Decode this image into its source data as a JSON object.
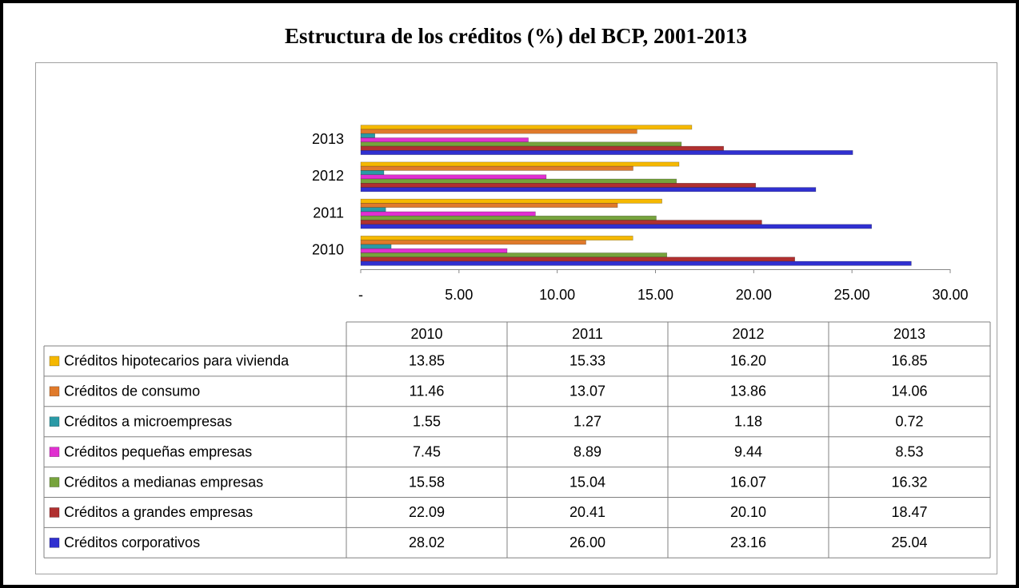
{
  "chart_data": {
    "type": "bar",
    "orientation": "horizontal",
    "title": "Estructura de los créditos (%) del BCP, 2001-2013",
    "categories": [
      "2010",
      "2011",
      "2012",
      "2013"
    ],
    "xlim": [
      0,
      30
    ],
    "xticks": [
      {
        "value": 0,
        "label": "-"
      },
      {
        "value": 5,
        "label": "5.00"
      },
      {
        "value": 10,
        "label": "10.00"
      },
      {
        "value": 15,
        "label": "15.00"
      },
      {
        "value": 20,
        "label": "20.00"
      },
      {
        "value": 25,
        "label": "25.00"
      },
      {
        "value": 30,
        "label": "30.00"
      }
    ],
    "series": [
      {
        "name": "Créditos hipotecarios para vivienda",
        "color": "#f5b800",
        "values": [
          13.85,
          15.33,
          16.2,
          16.85
        ],
        "value_labels": [
          "13.85",
          "15.33",
          "16.20",
          "16.85"
        ]
      },
      {
        "name": "Créditos de consumo",
        "color": "#e07a2b",
        "values": [
          11.46,
          13.07,
          13.86,
          14.06
        ],
        "value_labels": [
          "11.46",
          "13.07",
          "13.86",
          "14.06"
        ]
      },
      {
        "name": "Créditos a microempresas",
        "color": "#2a9aa6",
        "values": [
          1.55,
          1.27,
          1.18,
          0.72
        ],
        "value_labels": [
          "1.55",
          "1.27",
          "1.18",
          "0.72"
        ]
      },
      {
        "name": "Créditos pequeñas empresas",
        "color": "#e030d0",
        "values": [
          7.45,
          8.89,
          9.44,
          8.53
        ],
        "value_labels": [
          "7.45",
          "8.89",
          "9.44",
          "8.53"
        ]
      },
      {
        "name": "Créditos a medianas empresas",
        "color": "#76a33c",
        "values": [
          15.58,
          15.04,
          16.07,
          16.32
        ],
        "value_labels": [
          "15.58",
          "15.04",
          "16.07",
          "16.32"
        ]
      },
      {
        "name": "Créditos a grandes empresas",
        "color": "#b03030",
        "values": [
          22.09,
          20.41,
          20.1,
          18.47
        ],
        "value_labels": [
          "22.09",
          "20.41",
          "20.10",
          "18.47"
        ]
      },
      {
        "name": "Créditos corporativos",
        "color": "#3030d0",
        "values": [
          28.02,
          26.0,
          23.16,
          25.04
        ],
        "value_labels": [
          "28.02",
          "26.00",
          "23.16",
          "25.04"
        ]
      }
    ]
  }
}
